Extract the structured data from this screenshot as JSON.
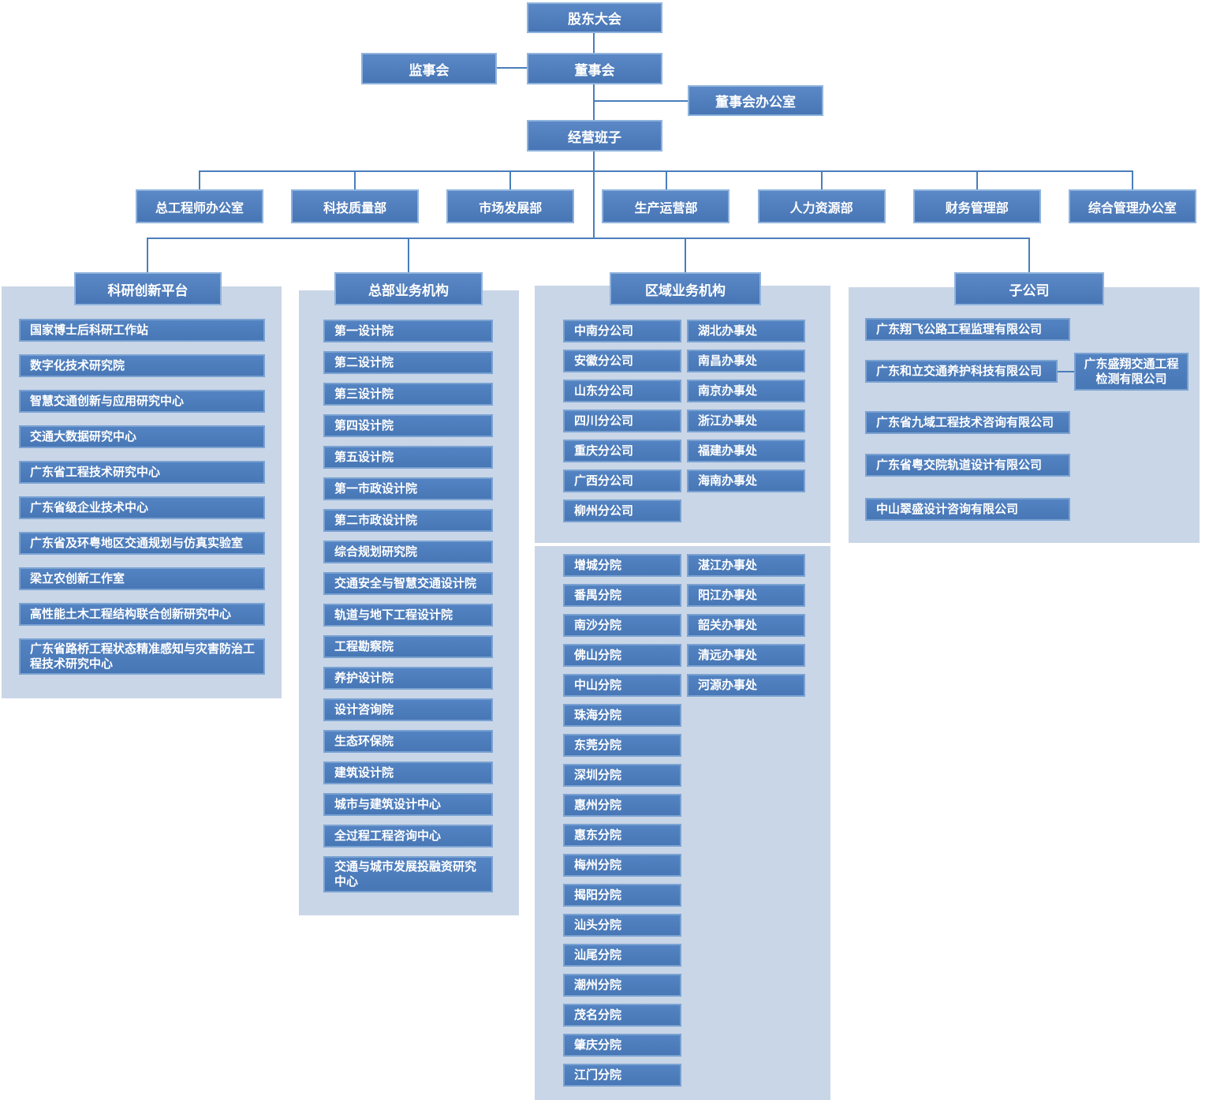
{
  "top": {
    "shareholders": "股东大会",
    "supervisory": "监事会",
    "board": "董事会",
    "board_office": "董事会办公室",
    "management": "经营班子"
  },
  "departments": [
    "总工程师办公室",
    "科技质量部",
    "市场发展部",
    "生产运营部",
    "人力资源部",
    "财务管理部",
    "综合管理办公室"
  ],
  "groups": {
    "research": {
      "title": "科研创新平台",
      "items": [
        "国家博士后科研工作站",
        "数字化技术研究院",
        "智慧交通创新与应用研究中心",
        "交通大数据研究中心",
        "广东省工程技术研究中心",
        "广东省级企业技术中心",
        "广东省及环粤地区交通规划与仿真实验室",
        "梁立农创新工作室",
        "高性能土木工程结构联合创新研究中心",
        "广东省路桥工程状态精准感知与灾害防治工程技术研究中心"
      ]
    },
    "hq": {
      "title": "总部业务机构",
      "items": [
        "第一设计院",
        "第二设计院",
        "第三设计院",
        "第四设计院",
        "第五设计院",
        "第一市政设计院",
        "第二市政设计院",
        "综合规划研究院",
        "交通安全与智慧交通设计院",
        "轨道与地下工程设计院",
        "工程勘察院",
        "养护设计院",
        "设计咨询院",
        "生态环保院",
        "建筑设计院",
        "城市与建筑设计中心",
        "全过程工程咨询中心",
        "交通与城市发展投融资研究中心"
      ]
    },
    "regional": {
      "title": "区域业务机构",
      "block1": {
        "branches": [
          "中南分公司",
          "安徽分公司",
          "山东分公司",
          "四川分公司",
          "重庆分公司",
          "广西分公司",
          "柳州分公司"
        ],
        "offices": [
          "湖北办事处",
          "南昌办事处",
          "南京办事处",
          "浙江办事处",
          "福建办事处",
          "海南办事处"
        ]
      },
      "block2": {
        "branches": [
          "增城分院",
          "番禺分院",
          "南沙分院",
          "佛山分院",
          "中山分院",
          "珠海分院",
          "东莞分院",
          "深圳分院",
          "惠州分院",
          "惠东分院",
          "梅州分院",
          "揭阳分院",
          "汕头分院",
          "汕尾分院",
          "潮州分院",
          "茂名分院",
          "肇庆分院",
          "江门分院"
        ],
        "offices": [
          "湛江办事处",
          "阳江办事处",
          "韶关办事处",
          "清远办事处",
          "河源办事处"
        ]
      }
    },
    "subsidiaries": {
      "title": "子公司",
      "items": [
        "广东翔飞公路工程监理有限公司",
        "广东和立交通养护科技有限公司",
        "广东省九域工程技术咨询有限公司",
        "广东省粤交院轨道设计有限公司",
        "中山翠盛设计咨询有限公司"
      ],
      "detection_sub": "广东盛翔交通工程检测有限公司"
    }
  },
  "colors": {
    "box_fill_top": "#5b88c6",
    "box_fill_bot": "#4876b5",
    "box_border": "#8fb3dd",
    "item_border": "#7aa2d2",
    "panel_bg": "#c9d6e7",
    "line": "#4a7ebb",
    "text": "#ffffff"
  }
}
